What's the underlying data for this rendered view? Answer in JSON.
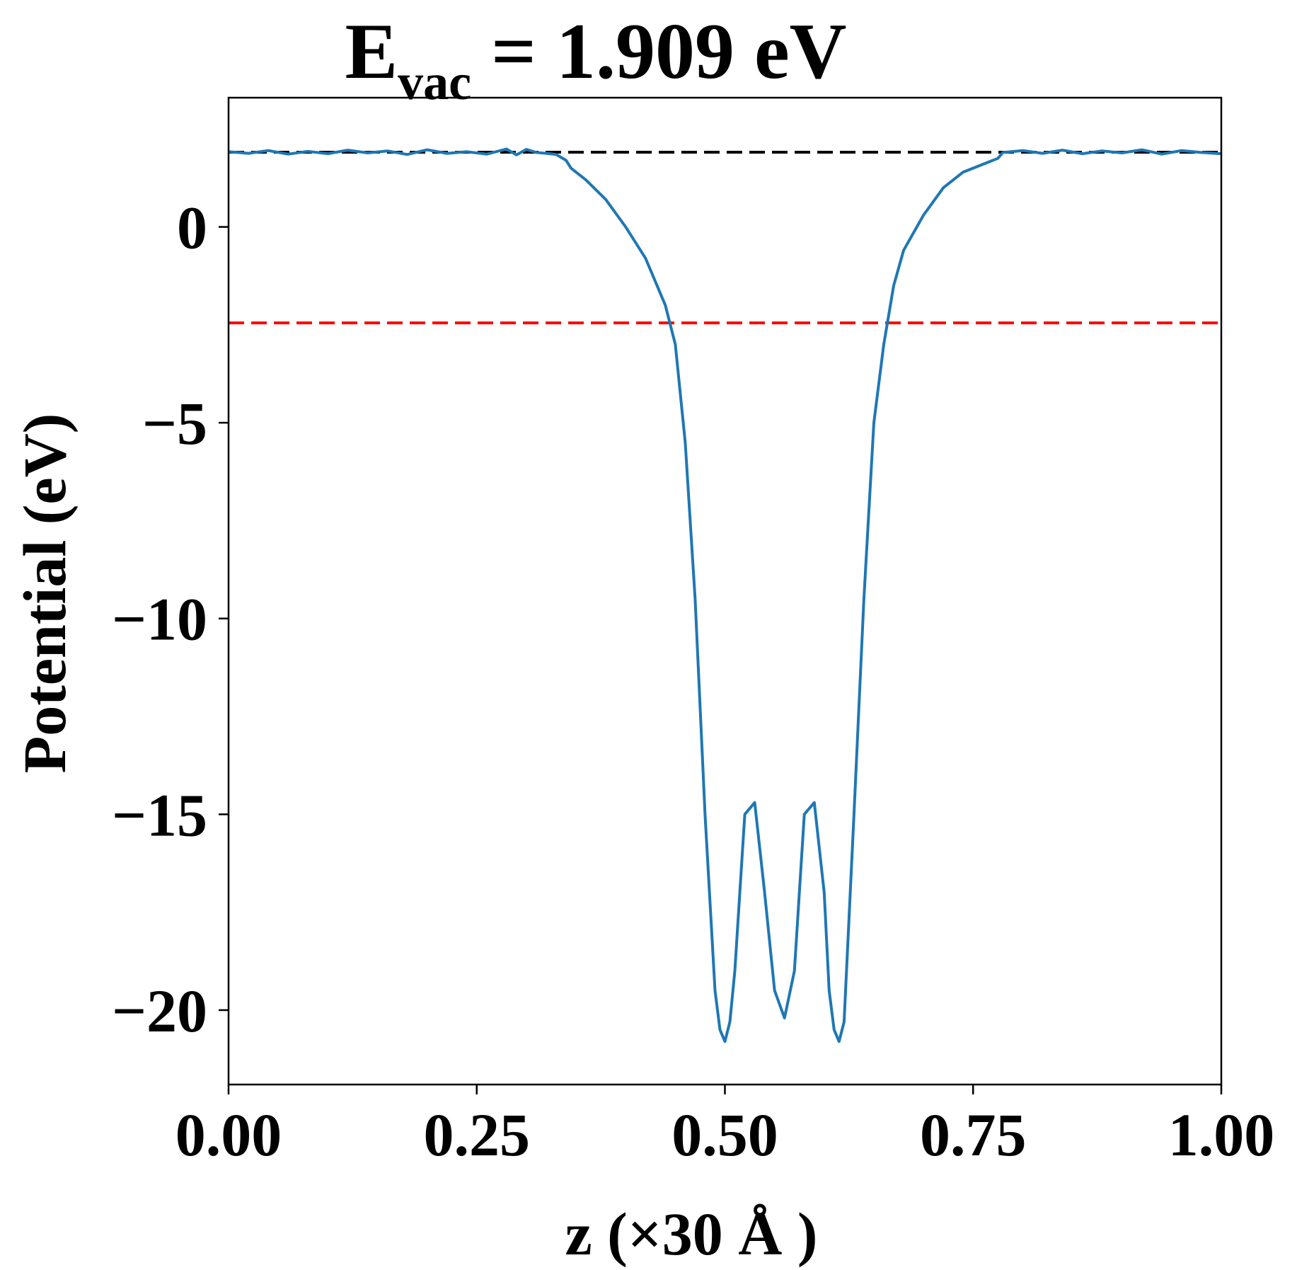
{
  "chart_data": {
    "type": "line",
    "title": {
      "main": "E",
      "subscript": "vac",
      "rest": " = 1.909 eV"
    },
    "xlabel": "z (×30 Å )",
    "ylabel": "Potential (eV)",
    "xlim": [
      0.0,
      1.0
    ],
    "ylim": [
      -21.9,
      3.3
    ],
    "xticks": [
      {
        "value": 0.0,
        "label": "0.00"
      },
      {
        "value": 0.25,
        "label": "0.25"
      },
      {
        "value": 0.5,
        "label": "0.50"
      },
      {
        "value": 0.75,
        "label": "0.75"
      },
      {
        "value": 1.0,
        "label": "1.00"
      }
    ],
    "yticks": [
      {
        "value": 0,
        "label": "0"
      },
      {
        "value": -5,
        "label": "−5"
      },
      {
        "value": -10,
        "label": "−10"
      },
      {
        "value": -15,
        "label": "−15"
      },
      {
        "value": -20,
        "label": "−20"
      }
    ],
    "grid": false,
    "legend": "none",
    "reference_lines": [
      {
        "y": 1.909,
        "color": "#000000",
        "style": "dashed",
        "x_range": [
          0.0,
          1.0
        ]
      },
      {
        "y": -2.45,
        "color": "#ff0000",
        "style": "dashed",
        "x_range": [
          0.0,
          1.0
        ]
      }
    ],
    "series": [
      {
        "color": "#1f77b4",
        "x": [
          0.0,
          0.02,
          0.04,
          0.06,
          0.08,
          0.1,
          0.12,
          0.14,
          0.16,
          0.18,
          0.2,
          0.22,
          0.24,
          0.26,
          0.28,
          0.29,
          0.3,
          0.31,
          0.32,
          0.33,
          0.34,
          0.345,
          0.36,
          0.38,
          0.4,
          0.42,
          0.44,
          0.45,
          0.46,
          0.47,
          0.48,
          0.49,
          0.495,
          0.5,
          0.505,
          0.51,
          0.52,
          0.53,
          0.54,
          0.55,
          0.56,
          0.57,
          0.58,
          0.59,
          0.6,
          0.605,
          0.61,
          0.615,
          0.62,
          0.63,
          0.64,
          0.65,
          0.66,
          0.67,
          0.68,
          0.7,
          0.72,
          0.74,
          0.76,
          0.775,
          0.78,
          0.8,
          0.82,
          0.84,
          0.86,
          0.88,
          0.9,
          0.92,
          0.94,
          0.96,
          0.98,
          1.0
        ],
        "y": [
          1.92,
          1.88,
          1.95,
          1.86,
          1.93,
          1.87,
          1.96,
          1.89,
          1.94,
          1.85,
          1.97,
          1.88,
          1.92,
          1.86,
          1.99,
          1.84,
          1.98,
          1.9,
          1.88,
          1.85,
          1.7,
          1.5,
          1.2,
          0.7,
          0.0,
          -0.8,
          -2.0,
          -3.0,
          -5.5,
          -9.5,
          -15.0,
          -19.5,
          -20.5,
          -20.8,
          -20.3,
          -19.0,
          -15.0,
          -14.7,
          -17.0,
          -19.5,
          -20.2,
          -19.0,
          -15.0,
          -14.7,
          -17.0,
          -19.5,
          -20.5,
          -20.8,
          -20.3,
          -15.0,
          -9.5,
          -5.0,
          -3.0,
          -1.5,
          -0.6,
          0.3,
          1.0,
          1.4,
          1.6,
          1.75,
          1.9,
          1.95,
          1.88,
          1.96,
          1.87,
          1.94,
          1.89,
          1.97,
          1.86,
          1.95,
          1.9,
          1.87
        ]
      }
    ]
  }
}
